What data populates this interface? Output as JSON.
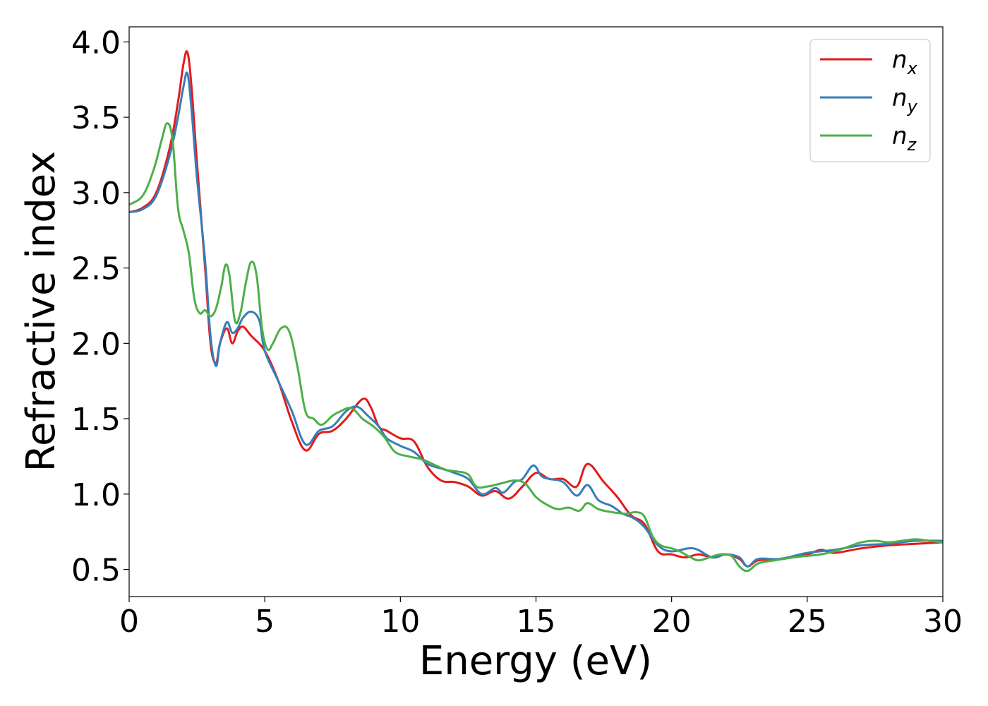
{
  "chart_data": {
    "type": "line",
    "title": "",
    "xlabel": "Energy (eV)",
    "ylabel": "Refractive index",
    "xlim": [
      0,
      30
    ],
    "ylim": [
      0.32,
      4.1
    ],
    "xticks": [
      0,
      5,
      10,
      15,
      20,
      25,
      30
    ],
    "xtick_labels": [
      "0",
      "5",
      "10",
      "15",
      "20",
      "25",
      "30"
    ],
    "yticks": [
      0.5,
      1.0,
      1.5,
      2.0,
      2.5,
      3.0,
      3.5,
      4.0
    ],
    "ytick_labels": [
      "0.5",
      "1.0",
      "1.5",
      "2.0",
      "2.5",
      "3.0",
      "3.5",
      "4.0"
    ],
    "grid": false,
    "legend_position": "top-right",
    "series": [
      {
        "name": "n",
        "subscript": "x",
        "color": "#e41a1c",
        "x": [
          0,
          0.5,
          1.0,
          1.5,
          1.8,
          2.0,
          2.15,
          2.3,
          2.5,
          2.8,
          3.0,
          3.2,
          3.35,
          3.6,
          3.8,
          4.0,
          4.2,
          4.5,
          5.0,
          5.5,
          6.0,
          6.5,
          7.0,
          7.5,
          8.0,
          8.6,
          8.9,
          9.2,
          9.5,
          10.0,
          10.5,
          11.0,
          11.5,
          12.0,
          12.5,
          13.0,
          13.5,
          14.0,
          14.5,
          15.0,
          15.5,
          16.0,
          16.5,
          16.9,
          17.5,
          18.0,
          18.5,
          19.0,
          19.5,
          20.0,
          20.5,
          21.0,
          21.5,
          22.0,
          22.5,
          22.8,
          23.2,
          24.0,
          25.0,
          25.5,
          26.0,
          27.0,
          28.0,
          29.0,
          30.0
        ],
        "values": [
          2.87,
          2.9,
          3.0,
          3.3,
          3.6,
          3.85,
          3.93,
          3.7,
          3.2,
          2.5,
          2.0,
          1.87,
          2.0,
          2.1,
          2.0,
          2.08,
          2.11,
          2.05,
          1.95,
          1.75,
          1.48,
          1.29,
          1.4,
          1.42,
          1.5,
          1.63,
          1.58,
          1.45,
          1.42,
          1.37,
          1.35,
          1.18,
          1.09,
          1.08,
          1.05,
          0.99,
          1.02,
          0.97,
          1.05,
          1.14,
          1.1,
          1.1,
          1.05,
          1.2,
          1.08,
          0.98,
          0.86,
          0.8,
          0.62,
          0.6,
          0.58,
          0.6,
          0.58,
          0.6,
          0.57,
          0.52,
          0.56,
          0.57,
          0.6,
          0.63,
          0.61,
          0.64,
          0.66,
          0.67,
          0.68
        ]
      },
      {
        "name": "n",
        "subscript": "y",
        "color": "#377eb8",
        "x": [
          0,
          0.5,
          1.0,
          1.5,
          1.8,
          2.0,
          2.15,
          2.3,
          2.5,
          2.8,
          3.0,
          3.2,
          3.35,
          3.6,
          3.8,
          4.0,
          4.2,
          4.5,
          4.8,
          5.0,
          5.5,
          6.0,
          6.5,
          7.0,
          7.5,
          8.0,
          8.4,
          8.8,
          9.2,
          9.5,
          10.0,
          10.5,
          11.0,
          11.5,
          12.0,
          12.5,
          13.0,
          13.5,
          13.8,
          14.2,
          14.5,
          14.9,
          15.2,
          15.5,
          16.0,
          16.5,
          16.9,
          17.3,
          17.8,
          18.2,
          18.6,
          19.0,
          19.5,
          20.0,
          20.8,
          21.5,
          22.0,
          22.5,
          22.8,
          23.2,
          24.0,
          25.0,
          26.0,
          27.0,
          28.0,
          29.0,
          30.0
        ],
        "values": [
          2.87,
          2.89,
          2.98,
          3.25,
          3.5,
          3.7,
          3.79,
          3.55,
          3.1,
          2.55,
          2.05,
          1.85,
          2.0,
          2.14,
          2.07,
          2.1,
          2.17,
          2.21,
          2.15,
          1.95,
          1.75,
          1.55,
          1.33,
          1.42,
          1.45,
          1.55,
          1.58,
          1.52,
          1.45,
          1.37,
          1.32,
          1.28,
          1.2,
          1.17,
          1.14,
          1.1,
          1.0,
          1.04,
          1.01,
          1.08,
          1.1,
          1.19,
          1.12,
          1.1,
          1.08,
          0.99,
          1.06,
          0.96,
          0.92,
          0.87,
          0.84,
          0.78,
          0.66,
          0.62,
          0.64,
          0.58,
          0.6,
          0.58,
          0.52,
          0.57,
          0.57,
          0.61,
          0.63,
          0.66,
          0.67,
          0.69,
          0.69
        ]
      },
      {
        "name": "n",
        "subscript": "z",
        "color": "#4daf4a",
        "x": [
          0,
          0.5,
          0.9,
          1.2,
          1.4,
          1.6,
          1.8,
          2.0,
          2.2,
          2.4,
          2.6,
          2.8,
          3.0,
          3.2,
          3.4,
          3.55,
          3.7,
          3.9,
          4.1,
          4.3,
          4.5,
          4.7,
          4.9,
          5.1,
          5.3,
          5.6,
          5.9,
          6.2,
          6.5,
          6.8,
          7.1,
          7.5,
          7.8,
          8.2,
          8.6,
          9.0,
          9.4,
          9.8,
          10.3,
          10.8,
          11.3,
          11.7,
          12.1,
          12.5,
          12.8,
          13.2,
          13.7,
          14.2,
          14.6,
          15.0,
          15.4,
          15.8,
          16.2,
          16.6,
          16.9,
          17.3,
          17.8,
          18.3,
          18.7,
          19.0,
          19.3,
          19.6,
          20.0,
          20.3,
          20.7,
          21.0,
          21.4,
          21.8,
          22.2,
          22.5,
          22.8,
          23.2,
          23.8,
          24.5,
          25.0,
          25.5,
          26.0,
          26.5,
          27.0,
          27.5,
          28.0,
          28.5,
          29.0,
          29.5,
          30.0
        ],
        "values": [
          2.92,
          2.98,
          3.15,
          3.35,
          3.46,
          3.35,
          2.9,
          2.75,
          2.6,
          2.3,
          2.2,
          2.22,
          2.18,
          2.23,
          2.38,
          2.52,
          2.45,
          2.15,
          2.2,
          2.4,
          2.54,
          2.45,
          2.1,
          1.96,
          2.0,
          2.1,
          2.08,
          1.85,
          1.55,
          1.5,
          1.46,
          1.52,
          1.55,
          1.57,
          1.5,
          1.45,
          1.38,
          1.28,
          1.25,
          1.23,
          1.19,
          1.16,
          1.15,
          1.13,
          1.05,
          1.05,
          1.07,
          1.09,
          1.07,
          0.98,
          0.93,
          0.9,
          0.91,
          0.89,
          0.94,
          0.9,
          0.88,
          0.87,
          0.88,
          0.85,
          0.72,
          0.66,
          0.64,
          0.62,
          0.58,
          0.56,
          0.58,
          0.6,
          0.59,
          0.52,
          0.49,
          0.54,
          0.56,
          0.58,
          0.59,
          0.6,
          0.62,
          0.65,
          0.68,
          0.69,
          0.68,
          0.69,
          0.7,
          0.69,
          0.68
        ]
      }
    ]
  }
}
